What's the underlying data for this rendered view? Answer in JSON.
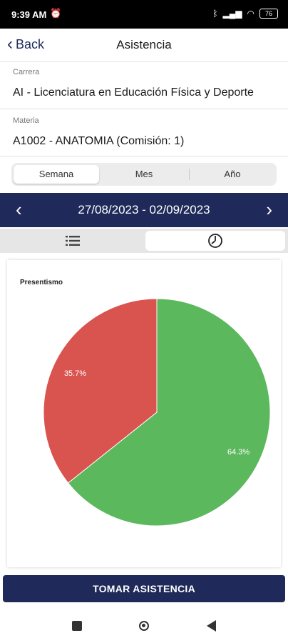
{
  "status_bar": {
    "time": "9:39 AM",
    "alarm_icon": "alarm-clock-icon",
    "battery": "76"
  },
  "header": {
    "back_label": "Back",
    "title": "Asistencia"
  },
  "fields": {
    "carrera": {
      "label": "Carrera",
      "value": "AI - Licenciatura en Educación Física y Deporte"
    },
    "materia": {
      "label": "Materia",
      "value": "A1002 - ANATOMIA (Comisión: 1)"
    }
  },
  "period_tabs": [
    {
      "label": "Semana",
      "active": true
    },
    {
      "label": "Mes",
      "active": false
    },
    {
      "label": "Año",
      "active": false
    }
  ],
  "date_range": "27/08/2023 - 02/09/2023",
  "view_toggle": {
    "list_icon": "list-icon",
    "chart_icon": "clock-chart-icon",
    "active": "chart"
  },
  "chart_data": {
    "type": "pie",
    "title": "Presentismo",
    "slices": [
      {
        "label": "64.3%",
        "value": 64.3,
        "color": "#5cb85c"
      },
      {
        "label": "35.7%",
        "value": 35.7,
        "color": "#d9534f"
      }
    ]
  },
  "cta_label": "TOMAR ASISTENCIA",
  "colors": {
    "primary": "#1f2a5a",
    "present": "#5cb85c",
    "absent": "#d9534f"
  }
}
